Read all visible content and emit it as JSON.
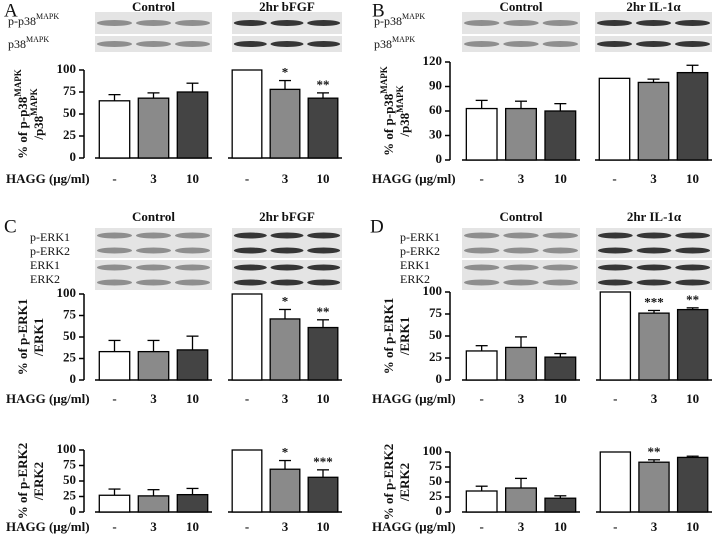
{
  "panels": [
    {
      "letter": "A",
      "groups": [
        "Control",
        "2hr bFGF"
      ],
      "blot_labels": [
        {
          "text": "p-p38",
          "sup": "MAPK"
        },
        {
          "text": "p38",
          "sup": "MAPK"
        }
      ]
    },
    {
      "letter": "B",
      "groups": [
        "Control",
        "2hr IL-1α"
      ],
      "blot_labels": [
        {
          "text": "p-p38",
          "sup": "MAPK"
        },
        {
          "text": "p38",
          "sup": "MAPK"
        }
      ]
    },
    {
      "letter": "C",
      "groups": [
        "Control",
        "2hr bFGF"
      ],
      "blot_labels": [
        {
          "text": "p-ERK1"
        },
        {
          "text": "p-ERK2"
        },
        {
          "text": "ERK1"
        },
        {
          "text": "ERK2"
        }
      ]
    },
    {
      "letter": "D",
      "groups": [
        "Control",
        "2hr IL-1α"
      ],
      "blot_labels": [
        {
          "text": "p-ERK1"
        },
        {
          "text": "p-ERK2"
        },
        {
          "text": "ERK1"
        },
        {
          "text": "ERK2"
        }
      ]
    }
  ],
  "chart_data": [
    {
      "type": "bar",
      "xlabel": "HAGG (μg/ml)",
      "ylabel": [
        {
          "text": "% of p-p38",
          "sup": "MAPK"
        },
        {
          "text": "/p38",
          "sup": "MAPK"
        }
      ],
      "categories": [
        "-",
        "3",
        "10",
        "-",
        "3",
        "10"
      ],
      "values": [
        65,
        68,
        75,
        100,
        78,
        68
      ],
      "errors": [
        7,
        6,
        10,
        null,
        10,
        6
      ],
      "stars": [
        null,
        null,
        null,
        null,
        "*",
        "**"
      ],
      "colors": [
        "#ffffff",
        "#8a8a8a",
        "#444444",
        "#ffffff",
        "#8a8a8a",
        "#444444"
      ],
      "ylim": [
        0,
        100
      ],
      "yticks": [
        0,
        25,
        50,
        75,
        100
      ]
    },
    {
      "type": "bar",
      "xlabel": "HAGG (μg/ml)",
      "ylabel": [
        {
          "text": "% of p-p38",
          "sup": "MAPK"
        },
        {
          "text": "/p38",
          "sup": "MAPK"
        }
      ],
      "categories": [
        "-",
        "3",
        "10",
        "-",
        "3",
        "10"
      ],
      "values": [
        63,
        63,
        60,
        100,
        95,
        107
      ],
      "errors": [
        10,
        9,
        9,
        null,
        4,
        9
      ],
      "stars": [
        null,
        null,
        null,
        null,
        null,
        null
      ],
      "colors": [
        "#ffffff",
        "#8a8a8a",
        "#444444",
        "#ffffff",
        "#8a8a8a",
        "#444444"
      ],
      "ylim": [
        0,
        120
      ],
      "yticks": [
        0,
        30,
        60,
        90,
        120
      ]
    },
    {
      "type": "bar",
      "xlabel": "HAGG (μg/ml)",
      "ylabel": [
        {
          "text": "% of p-ERK1"
        },
        {
          "text": "/ERK1"
        }
      ],
      "categories": [
        "-",
        "3",
        "10",
        "-",
        "3",
        "10"
      ],
      "values": [
        33,
        33,
        35,
        100,
        71,
        61
      ],
      "errors": [
        13,
        13,
        16,
        null,
        11,
        9
      ],
      "stars": [
        null,
        null,
        null,
        null,
        "*",
        "**"
      ],
      "colors": [
        "#ffffff",
        "#8a8a8a",
        "#444444",
        "#ffffff",
        "#8a8a8a",
        "#444444"
      ],
      "ylim": [
        0,
        100
      ],
      "yticks": [
        0,
        25,
        50,
        75,
        100
      ]
    },
    {
      "type": "bar",
      "xlabel": "HAGG (μg/ml)",
      "ylabel": [
        {
          "text": "% of p-ERK2"
        },
        {
          "text": "/ERK2"
        }
      ],
      "categories": [
        "-",
        "3",
        "10",
        "-",
        "3",
        "10"
      ],
      "values": [
        27,
        26,
        28,
        100,
        69,
        56
      ],
      "errors": [
        10,
        10,
        10,
        null,
        14,
        12
      ],
      "stars": [
        null,
        null,
        null,
        null,
        "*",
        "***"
      ],
      "colors": [
        "#ffffff",
        "#8a8a8a",
        "#444444",
        "#ffffff",
        "#8a8a8a",
        "#444444"
      ],
      "ylim": [
        0,
        100
      ],
      "yticks": [
        0,
        25,
        50,
        75,
        100
      ]
    },
    {
      "type": "bar",
      "xlabel": "HAGG (μg/ml)",
      "ylabel": [
        {
          "text": "% of p-ERK1"
        },
        {
          "text": "/ERK1"
        }
      ],
      "categories": [
        "-",
        "3",
        "10",
        "-",
        "3",
        "10"
      ],
      "values": [
        33,
        37,
        26,
        100,
        76,
        80
      ],
      "errors": [
        6,
        12,
        4,
        null,
        3,
        2
      ],
      "stars": [
        null,
        null,
        null,
        null,
        "***",
        "**"
      ],
      "colors": [
        "#ffffff",
        "#8a8a8a",
        "#444444",
        "#ffffff",
        "#8a8a8a",
        "#444444"
      ],
      "ylim": [
        0,
        100
      ],
      "yticks": [
        0,
        25,
        50,
        75,
        100
      ]
    },
    {
      "type": "bar",
      "xlabel": "HAGG (μg/ml)",
      "ylabel": [
        {
          "text": "% of p-ERK2"
        },
        {
          "text": "/ERK2"
        }
      ],
      "categories": [
        "-",
        "3",
        "10",
        "-",
        "3",
        "10"
      ],
      "values": [
        35,
        40,
        23,
        100,
        83,
        91
      ],
      "errors": [
        8,
        16,
        4,
        null,
        4,
        2
      ],
      "stars": [
        null,
        null,
        null,
        null,
        "**",
        null
      ],
      "colors": [
        "#ffffff",
        "#8a8a8a",
        "#444444",
        "#ffffff",
        "#8a8a8a",
        "#444444"
      ],
      "ylim": [
        0,
        100
      ],
      "yticks": [
        0,
        25,
        50,
        75,
        100
      ]
    }
  ]
}
